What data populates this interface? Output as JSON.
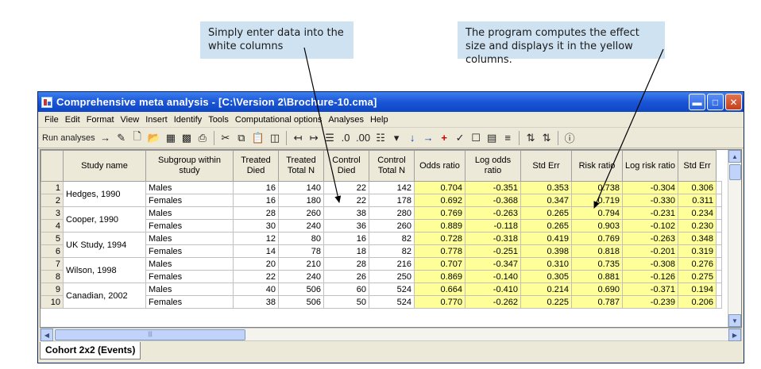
{
  "callouts": {
    "left": "Simply enter data into the white columns",
    "right": "The program computes the effect size and displays it in the yellow columns."
  },
  "window": {
    "title": "Comprehensive meta analysis - [C:\\Version 2\\Brochure-10.cma]",
    "buttons": [
      "minimize-icon",
      "maximize-icon",
      "close-icon"
    ]
  },
  "menu": [
    "File",
    "Edit",
    "Format",
    "View",
    "Insert",
    "Identify",
    "Tools",
    "Computational options",
    "Analyses",
    "Help"
  ],
  "toolbar": {
    "run_label": "Run analyses",
    "icons": [
      "arrow-right-icon",
      "pencil-icon",
      "new-file-icon",
      "open-folder-icon",
      "open-data-icon",
      "save-icon",
      "print-icon",
      "cut-icon",
      "copy-icon",
      "paste-icon",
      "paste-special-icon",
      "decrease-indent-icon",
      "increase-indent-icon",
      "outline-icon",
      "add-decimals-icon",
      "remove-decimals-icon",
      "columns-icon",
      "dropdown-icon",
      "arrow-down-icon",
      "arrow-right-icon",
      "plus-icon",
      "checkmark-icon",
      "box-icon",
      "list-icon",
      "align-icon",
      "sort-ascending-icon",
      "sort-descending-icon",
      "help-icon"
    ]
  },
  "grid": {
    "headers": [
      "Study name",
      "Subgroup within study",
      "Treated Died",
      "Treated Total N",
      "Control Died",
      "Control Total N",
      "Odds ratio",
      "Log odds ratio",
      "Std Err",
      "Risk ratio",
      "Log risk ratio",
      "Std Err"
    ],
    "studies": [
      {
        "name": "Hedges, 1990",
        "rows": [
          {
            "n": "1",
            "sub": "Males",
            "td": "16",
            "tn": "140",
            "cd": "22",
            "cn": "142",
            "or": "0.704",
            "lor": "-0.351",
            "se1": "0.353",
            "rr": "0.738",
            "lrr": "-0.304",
            "se2": "0.306"
          },
          {
            "n": "2",
            "sub": "Females",
            "td": "16",
            "tn": "180",
            "cd": "22",
            "cn": "178",
            "or": "0.692",
            "lor": "-0.368",
            "se1": "0.347",
            "rr": "0.719",
            "lrr": "-0.330",
            "se2": "0.311"
          }
        ]
      },
      {
        "name": "Cooper, 1990",
        "rows": [
          {
            "n": "3",
            "sub": "Males",
            "td": "28",
            "tn": "260",
            "cd": "38",
            "cn": "280",
            "or": "0.769",
            "lor": "-0.263",
            "se1": "0.265",
            "rr": "0.794",
            "lrr": "-0.231",
            "se2": "0.234"
          },
          {
            "n": "4",
            "sub": "Females",
            "td": "30",
            "tn": "240",
            "cd": "36",
            "cn": "260",
            "or": "0.889",
            "lor": "-0.118",
            "se1": "0.265",
            "rr": "0.903",
            "lrr": "-0.102",
            "se2": "0.230"
          }
        ]
      },
      {
        "name": "UK Study, 1994",
        "rows": [
          {
            "n": "5",
            "sub": "Males",
            "td": "12",
            "tn": "80",
            "cd": "16",
            "cn": "82",
            "or": "0.728",
            "lor": "-0.318",
            "se1": "0.419",
            "rr": "0.769",
            "lrr": "-0.263",
            "se2": "0.348"
          },
          {
            "n": "6",
            "sub": "Females",
            "td": "14",
            "tn": "78",
            "cd": "18",
            "cn": "82",
            "or": "0.778",
            "lor": "-0.251",
            "se1": "0.398",
            "rr": "0.818",
            "lrr": "-0.201",
            "se2": "0.319"
          }
        ]
      },
      {
        "name": "Wilson, 1998",
        "rows": [
          {
            "n": "7",
            "sub": "Males",
            "td": "20",
            "tn": "210",
            "cd": "28",
            "cn": "216",
            "or": "0.707",
            "lor": "-0.347",
            "se1": "0.310",
            "rr": "0.735",
            "lrr": "-0.308",
            "se2": "0.276"
          },
          {
            "n": "8",
            "sub": "Females",
            "td": "22",
            "tn": "240",
            "cd": "26",
            "cn": "250",
            "or": "0.869",
            "lor": "-0.140",
            "se1": "0.305",
            "rr": "0.881",
            "lrr": "-0.126",
            "se2": "0.275"
          }
        ]
      },
      {
        "name": "Canadian, 2002",
        "rows": [
          {
            "n": "9",
            "sub": "Males",
            "td": "40",
            "tn": "506",
            "cd": "60",
            "cn": "524",
            "or": "0.664",
            "lor": "-0.410",
            "se1": "0.214",
            "rr": "0.690",
            "lrr": "-0.371",
            "se2": "0.194"
          },
          {
            "n": "10",
            "sub": "Females",
            "td": "38",
            "tn": "506",
            "cd": "50",
            "cn": "524",
            "or": "0.770",
            "lor": "-0.262",
            "se1": "0.225",
            "rr": "0.787",
            "lrr": "-0.239",
            "se2": "0.206"
          }
        ]
      }
    ]
  },
  "tab": {
    "label": "Cohort 2x2 (Events)"
  },
  "colors": {
    "yellow": "#ffff99",
    "title_blue": "#1a55d6",
    "callout": "#cfe2f1"
  }
}
